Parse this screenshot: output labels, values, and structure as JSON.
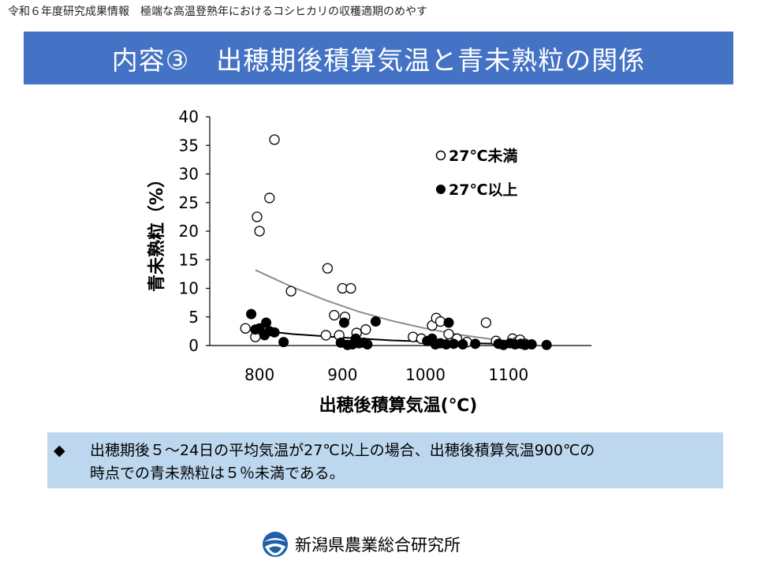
{
  "header": {
    "caption": "令和６年度研究成果情報　極端な高温登熟年におけるコシヒカリの収穫適期のめやす",
    "title": "内容③　出穂期後積算気温と青未熟粒の関係"
  },
  "summary": {
    "bullet": "◆",
    "line1": "出穂期後５～24日の平均気温が27℃以上の場合、出穂後積算気温900℃の",
    "line2": "時点での青未熟粒は５％未満である。"
  },
  "footer": {
    "org_name": "新潟県農業総合研究所",
    "logo_icon": "prefecture-emblem-icon"
  },
  "chart_data": {
    "type": "scatter",
    "title": "",
    "xlabel": "出穂後積算気温(℃)",
    "ylabel": "青未熟粒（%）",
    "xlim": [
      740,
      1200
    ],
    "ylim": [
      0,
      40
    ],
    "xticks": [
      "800",
      "900",
      "1000",
      "1100"
    ],
    "xtick_values": [
      800,
      900,
      1000,
      1100
    ],
    "yticks": [
      "0",
      "5",
      "10",
      "15",
      "20",
      "25",
      "30",
      "35",
      "40"
    ],
    "ytick_values": [
      0,
      5,
      10,
      15,
      20,
      25,
      30,
      35,
      40
    ],
    "grid": false,
    "legend_position": "top-right",
    "series": [
      {
        "name": "27℃未満",
        "marker": "open-circle",
        "color": "#000000",
        "points": [
          [
            783,
            3.0
          ],
          [
            795,
            1.5
          ],
          [
            797,
            22.5
          ],
          [
            800,
            20.0
          ],
          [
            812,
            25.8
          ],
          [
            818,
            36.0
          ],
          [
            838,
            9.5
          ],
          [
            880,
            1.8
          ],
          [
            882,
            13.5
          ],
          [
            890,
            5.3
          ],
          [
            896,
            1.8
          ],
          [
            900,
            10.0
          ],
          [
            903,
            5.0
          ],
          [
            910,
            10.0
          ],
          [
            917,
            2.2
          ],
          [
            928,
            2.8
          ],
          [
            985,
            1.5
          ],
          [
            995,
            1.2
          ],
          [
            1008,
            3.5
          ],
          [
            1013,
            4.8
          ],
          [
            1018,
            4.2
          ],
          [
            1028,
            2.0
          ],
          [
            1038,
            1.2
          ],
          [
            1050,
            0.6
          ],
          [
            1073,
            4.0
          ],
          [
            1085,
            0.8
          ],
          [
            1105,
            1.2
          ],
          [
            1110,
            0.6
          ],
          [
            1114,
            1.0
          ],
          [
            1120,
            0.3
          ]
        ],
        "trend": [
          [
            795,
            13.2
          ],
          [
            840,
            10.2
          ],
          [
            880,
            7.9
          ],
          [
            920,
            5.9
          ],
          [
            960,
            4.3
          ],
          [
            1000,
            3.0
          ],
          [
            1040,
            1.9
          ],
          [
            1080,
            1.1
          ],
          [
            1110,
            0.6
          ]
        ]
      },
      {
        "name": "27℃以上",
        "marker": "filled-circle",
        "color": "#000000",
        "points": [
          [
            790,
            5.5
          ],
          [
            795,
            2.8
          ],
          [
            800,
            3.0
          ],
          [
            806,
            1.8
          ],
          [
            808,
            4.0
          ],
          [
            812,
            2.5
          ],
          [
            818,
            2.3
          ],
          [
            829,
            0.6
          ],
          [
            898,
            0.5
          ],
          [
            902,
            4.0
          ],
          [
            906,
            0.1
          ],
          [
            912,
            0.2
          ],
          [
            916,
            1.2
          ],
          [
            920,
            0.4
          ],
          [
            926,
            0.5
          ],
          [
            930,
            0.2
          ],
          [
            940,
            4.2
          ],
          [
            1002,
            0.8
          ],
          [
            1008,
            1.2
          ],
          [
            1012,
            0.2
          ],
          [
            1018,
            0.4
          ],
          [
            1025,
            0.2
          ],
          [
            1028,
            4.0
          ],
          [
            1034,
            0.3
          ],
          [
            1045,
            0.2
          ],
          [
            1060,
            0.3
          ],
          [
            1088,
            0.3
          ],
          [
            1094,
            0.1
          ],
          [
            1102,
            0.4
          ],
          [
            1108,
            0.2
          ],
          [
            1115,
            0.3
          ],
          [
            1120,
            0.1
          ],
          [
            1128,
            0.2
          ],
          [
            1146,
            0.1
          ]
        ],
        "trend": [
          [
            790,
            2.8
          ],
          [
            840,
            2.0
          ],
          [
            900,
            1.4
          ],
          [
            960,
            0.9
          ],
          [
            1000,
            0.7
          ],
          [
            1060,
            0.4
          ],
          [
            1120,
            0.2
          ]
        ]
      }
    ]
  }
}
